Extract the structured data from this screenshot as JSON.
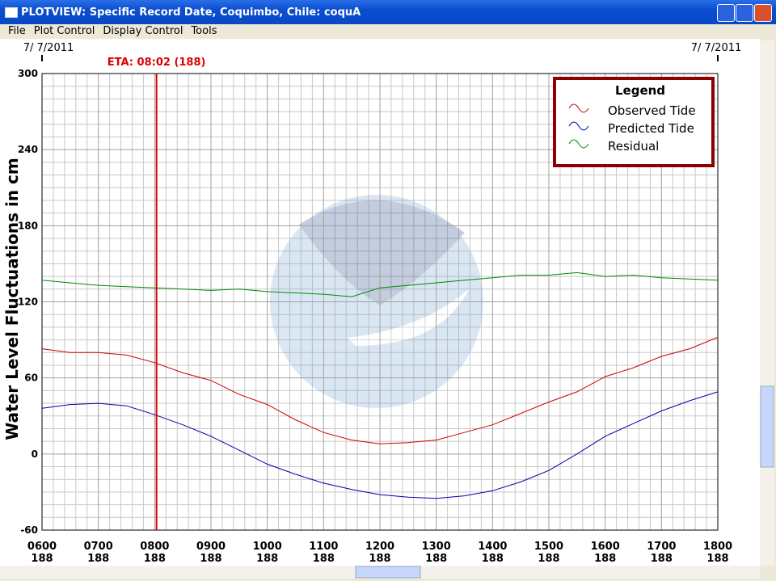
{
  "window": {
    "title": "PLOTVIEW: Specific Record Date, Coquimbo, Chile: coquA",
    "menu": [
      "File",
      "Plot Control",
      "Display Control",
      "Tools"
    ]
  },
  "chart_data": {
    "type": "line",
    "y_label": "Water Level Fluctuations in cm",
    "date_labels": [
      "7/ 7/2011",
      "7/ 7/2011"
    ],
    "annotations": [
      {
        "text": "ETA: 08:02 (188)",
        "x": 8.033,
        "color": "#dd0000"
      }
    ],
    "x": [
      6,
      6.5,
      7,
      7.5,
      8,
      8.5,
      9,
      9.5,
      10,
      10.5,
      11,
      11.5,
      12,
      12.5,
      13,
      13.5,
      14,
      14.5,
      15,
      15.5,
      16,
      16.5,
      17,
      17.5,
      18
    ],
    "series": [
      {
        "name": "Observed Tide",
        "color": "#cc0000",
        "values": [
          83,
          80,
          80,
          78,
          72,
          64,
          58,
          47,
          39,
          27,
          17,
          11,
          8,
          9,
          11,
          17,
          23,
          32,
          41,
          49,
          61,
          68,
          77,
          83,
          92
        ]
      },
      {
        "name": "Predicted Tide",
        "color": "#0000aa",
        "values": [
          36,
          39,
          40,
          38,
          31,
          23,
          14,
          3,
          -8,
          -16,
          -23,
          -28,
          -32,
          -34,
          -35,
          -33,
          -29,
          -22,
          -13,
          0,
          14,
          24,
          34,
          42,
          49
        ]
      },
      {
        "name": "Residual",
        "color": "#008800",
        "values": [
          137,
          135,
          133,
          132,
          131,
          130,
          129,
          130,
          128,
          127,
          126,
          124,
          131,
          133,
          135,
          137,
          139,
          141,
          141,
          143,
          140,
          141,
          139,
          138,
          137
        ]
      }
    ],
    "xlim": [
      6,
      18
    ],
    "xticks": [
      {
        "value": 6,
        "label": "0600"
      },
      {
        "value": 7,
        "label": "0700"
      },
      {
        "value": 8,
        "label": "0800"
      },
      {
        "value": 9,
        "label": "0900"
      },
      {
        "value": 10,
        "label": "1000"
      },
      {
        "value": 11,
        "label": "1100"
      },
      {
        "value": 12,
        "label": "1200"
      },
      {
        "value": 13,
        "label": "1300"
      },
      {
        "value": 14,
        "label": "1400"
      },
      {
        "value": 15,
        "label": "1500"
      },
      {
        "value": 16,
        "label": "1600"
      },
      {
        "value": 17,
        "label": "1700"
      },
      {
        "value": 18,
        "label": "1800"
      }
    ],
    "xtick_sublabels": [
      "188",
      "188",
      "188",
      "188",
      "188",
      "188",
      "188",
      "188",
      "188",
      "188",
      "188",
      "188",
      "188"
    ],
    "ylim": [
      -60,
      300
    ],
    "yticks": [
      -60,
      0,
      60,
      120,
      180,
      240,
      300
    ],
    "grid": true,
    "legend": {
      "title": "Legend",
      "position": "top-right"
    }
  }
}
